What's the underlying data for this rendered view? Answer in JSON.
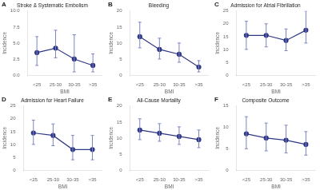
{
  "chart_data": [
    {
      "type": "line",
      "title": "Stroke & Systematic Embolism",
      "annotations": [
        "A"
      ],
      "x_label": "BMI",
      "y_label": "Incidence",
      "categories": [
        "<25",
        "25-30",
        "30-35",
        ">35"
      ],
      "values": [
        3.5,
        4.2,
        2.5,
        1.5
      ],
      "error_low": [
        2.0,
        1.5,
        2.0,
        1.0
      ],
      "error_high": [
        2.5,
        2.8,
        3.8,
        1.8
      ],
      "color": "#2E3785",
      "error_color": "#7B85C0",
      "marker": "circle",
      "ylim": [
        0,
        10
      ],
      "yticks": [
        {
          "value": 0,
          "label": "0.0"
        },
        2.5,
        {
          "value": 5,
          "label": "5.0"
        },
        7.5,
        {
          "value": 10,
          "label": "10.0"
        }
      ],
      "grid": false
    },
    {
      "type": "line",
      "title": "Bleeding",
      "annotations": [
        "B"
      ],
      "x_label": "BMI",
      "y_label": "Incidence",
      "categories": [
        "<25",
        "25-30",
        "30-35",
        ">35"
      ],
      "values": [
        12.0,
        8.0,
        6.5,
        2.5
      ],
      "error_low": [
        3.5,
        3.0,
        2.5,
        1.5
      ],
      "error_high": [
        4.5,
        3.5,
        3.5,
        2.0
      ],
      "color": "#2E3785",
      "error_color": "#7B85C0",
      "marker": "circle",
      "ylim": [
        0,
        20
      ],
      "yticks": [
        0,
        5,
        10,
        15,
        20
      ],
      "grid": false
    },
    {
      "type": "line",
      "title": "Admission for Atrial Fibrillation",
      "annotations": [
        "C"
      ],
      "x_label": "BMI",
      "y_label": "Incidence",
      "categories": [
        "<25",
        "25-30",
        "30-35",
        ">35"
      ],
      "values": [
        15.5,
        15.5,
        13.5,
        17.5
      ],
      "error_low": [
        5.5,
        4.5,
        4.0,
        5.0
      ],
      "error_high": [
        5.5,
        4.5,
        4.5,
        7.5
      ],
      "color": "#2E3785",
      "error_color": "#7B85C0",
      "marker": "circle",
      "ylim": [
        0,
        25
      ],
      "yticks": [
        0,
        5,
        10,
        15,
        20,
        25
      ],
      "grid": false
    },
    {
      "type": "line",
      "title": "Admission for Heart Failure",
      "annotations": [
        "D"
      ],
      "x_label": "BMI",
      "y_label": "Incidence",
      "categories": [
        "<25",
        "25-30",
        "30-35",
        ">35"
      ],
      "values": [
        14.5,
        13.5,
        8.0,
        8.0
      ],
      "error_low": [
        4.5,
        4.0,
        4.0,
        4.0
      ],
      "error_high": [
        5.0,
        4.5,
        5.5,
        5.5
      ],
      "color": "#2E3785",
      "error_color": "#7B85C0",
      "marker": "circle",
      "ylim": [
        0,
        25
      ],
      "yticks": [
        0,
        5,
        10,
        15,
        20,
        25
      ],
      "grid": false
    },
    {
      "type": "line",
      "title": "All-Cause Mortality",
      "annotations": [
        "E"
      ],
      "x_label": "BMI",
      "y_label": "Incidence",
      "categories": [
        "<25",
        "25-30",
        "30-35",
        ">35"
      ],
      "values": [
        12.5,
        11.5,
        10.5,
        9.5
      ],
      "error_low": [
        3.0,
        2.5,
        2.5,
        2.5
      ],
      "error_high": [
        3.5,
        3.0,
        3.0,
        3.0
      ],
      "color": "#2E3785",
      "error_color": "#7B85C0",
      "marker": "circle",
      "ylim": [
        0,
        20
      ],
      "yticks": [
        0,
        5,
        10,
        15,
        20
      ],
      "grid": false
    },
    {
      "type": "line",
      "title": "Composite Outcome",
      "annotations": [
        "F"
      ],
      "x_label": "BMI",
      "y_label": "Incidence",
      "categories": [
        "<25",
        "25-30",
        "30-35",
        ">35"
      ],
      "values": [
        8.5,
        7.5,
        7.0,
        6.0
      ],
      "error_low": [
        3.5,
        3.0,
        3.0,
        2.5
      ],
      "error_high": [
        4.0,
        3.5,
        3.5,
        3.0
      ],
      "color": "#2E3785",
      "error_color": "#7B85C0",
      "marker": "circle",
      "ylim": [
        0,
        15
      ],
      "yticks": [
        0,
        5,
        10,
        15
      ],
      "grid": false
    }
  ]
}
